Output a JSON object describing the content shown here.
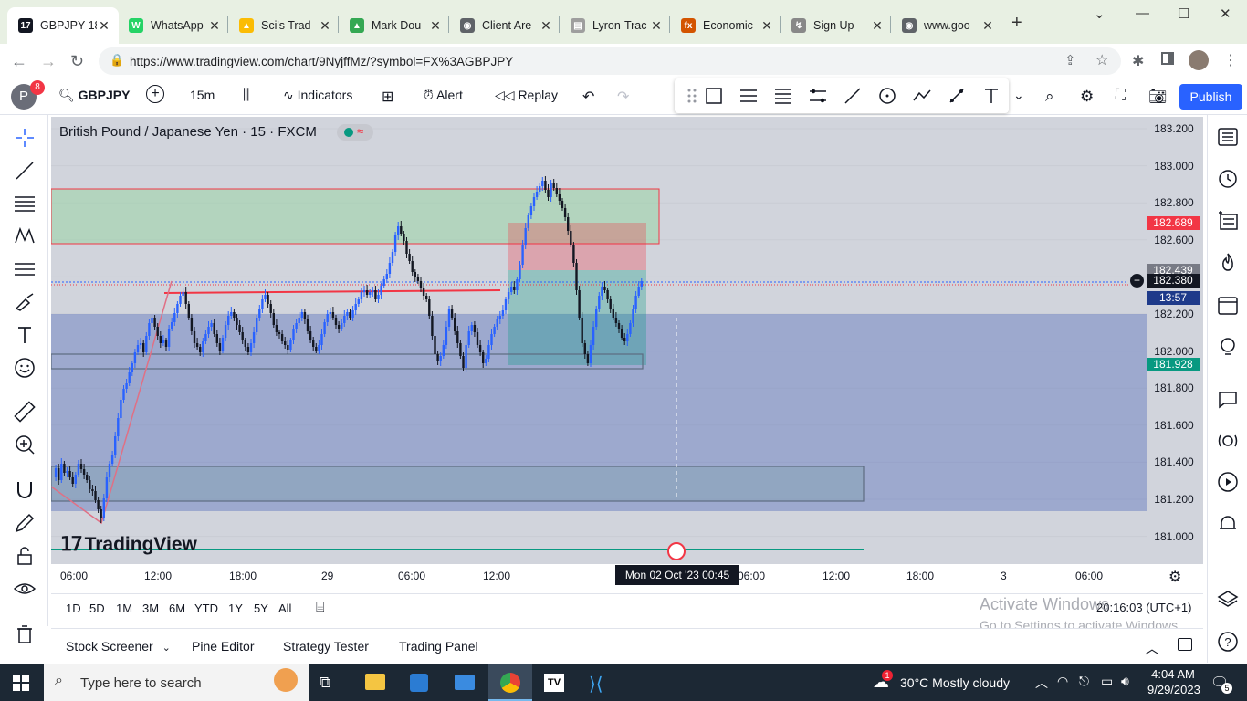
{
  "browser": {
    "tabs": [
      {
        "title": "GBPJPY 18",
        "active": true,
        "color": "#131722",
        "glyph": "17"
      },
      {
        "title": "WhatsApp",
        "color": "#25d366",
        "glyph": "W"
      },
      {
        "title": "Sci's Trad",
        "color": "#fbbc04",
        "glyph": "▲"
      },
      {
        "title": "Mark Dou",
        "color": "#34a853",
        "glyph": "▲"
      },
      {
        "title": "Client Are",
        "color": "#5f6368",
        "glyph": "◉"
      },
      {
        "title": "Lyron-Trac",
        "color": "#9e9e9e",
        "glyph": "▤"
      },
      {
        "title": "Economic",
        "color": "#d35400",
        "glyph": "fx"
      },
      {
        "title": "Sign Up",
        "color": "#888",
        "glyph": "↯"
      },
      {
        "title": "www.goo",
        "color": "#5f6368",
        "glyph": "◉"
      }
    ],
    "url": "https://www.tradingview.com/chart/9NyjffMz/?symbol=FX%3AGBPJPY"
  },
  "toolbar": {
    "avatar_letter": "P",
    "notif_count": "8",
    "symbol": "GBPJPY",
    "interval": "15m",
    "indicators": "Indicators",
    "alert": "Alert",
    "replay": "Replay",
    "publish": "Publish"
  },
  "chart": {
    "title": "British Pound / Japanese Yen · 15 · FXCM",
    "logo_text": "TradingView",
    "price_ticks": [
      "183.200",
      "183.000",
      "182.800",
      "182.600",
      "182.400",
      "182.200",
      "182.000",
      "181.800",
      "181.600",
      "181.400",
      "181.200",
      "181.000"
    ],
    "labels": {
      "red": "182.689",
      "grey": "182.439",
      "current": "182.380",
      "countdown": "13:57",
      "green": "181.928"
    },
    "time_ticks": [
      "06:00",
      "12:00",
      "18:00",
      "29",
      "06:00",
      "12:00",
      "06:00",
      "12:00",
      "18:00",
      "3",
      "06:00"
    ],
    "crosshair_time": "Mon 02 Oct '23   00:45",
    "ranges": [
      "1D",
      "5D",
      "1M",
      "3M",
      "6M",
      "YTD",
      "1Y",
      "5Y",
      "All"
    ],
    "clock": "20:16:03 (UTC+1)",
    "colors": {
      "up": "#2962ff",
      "down": "#131722",
      "red_zone": "#f23645",
      "green_zone": "#089981",
      "blue_zone": "#4a63b8"
    }
  },
  "bottom_tabs": [
    "Stock Screener",
    "Pine Editor",
    "Strategy Tester",
    "Trading Panel"
  ],
  "watermark": {
    "line1": "Activate Windows",
    "line2": "Go to Settings to activate Windows."
  },
  "taskbar": {
    "search_placeholder": "Type here to search",
    "weather": "30°C  Mostly cloudy",
    "time": "4:04 AM",
    "date": "9/29/2023",
    "notif": "5",
    "weather_badge": "1"
  }
}
